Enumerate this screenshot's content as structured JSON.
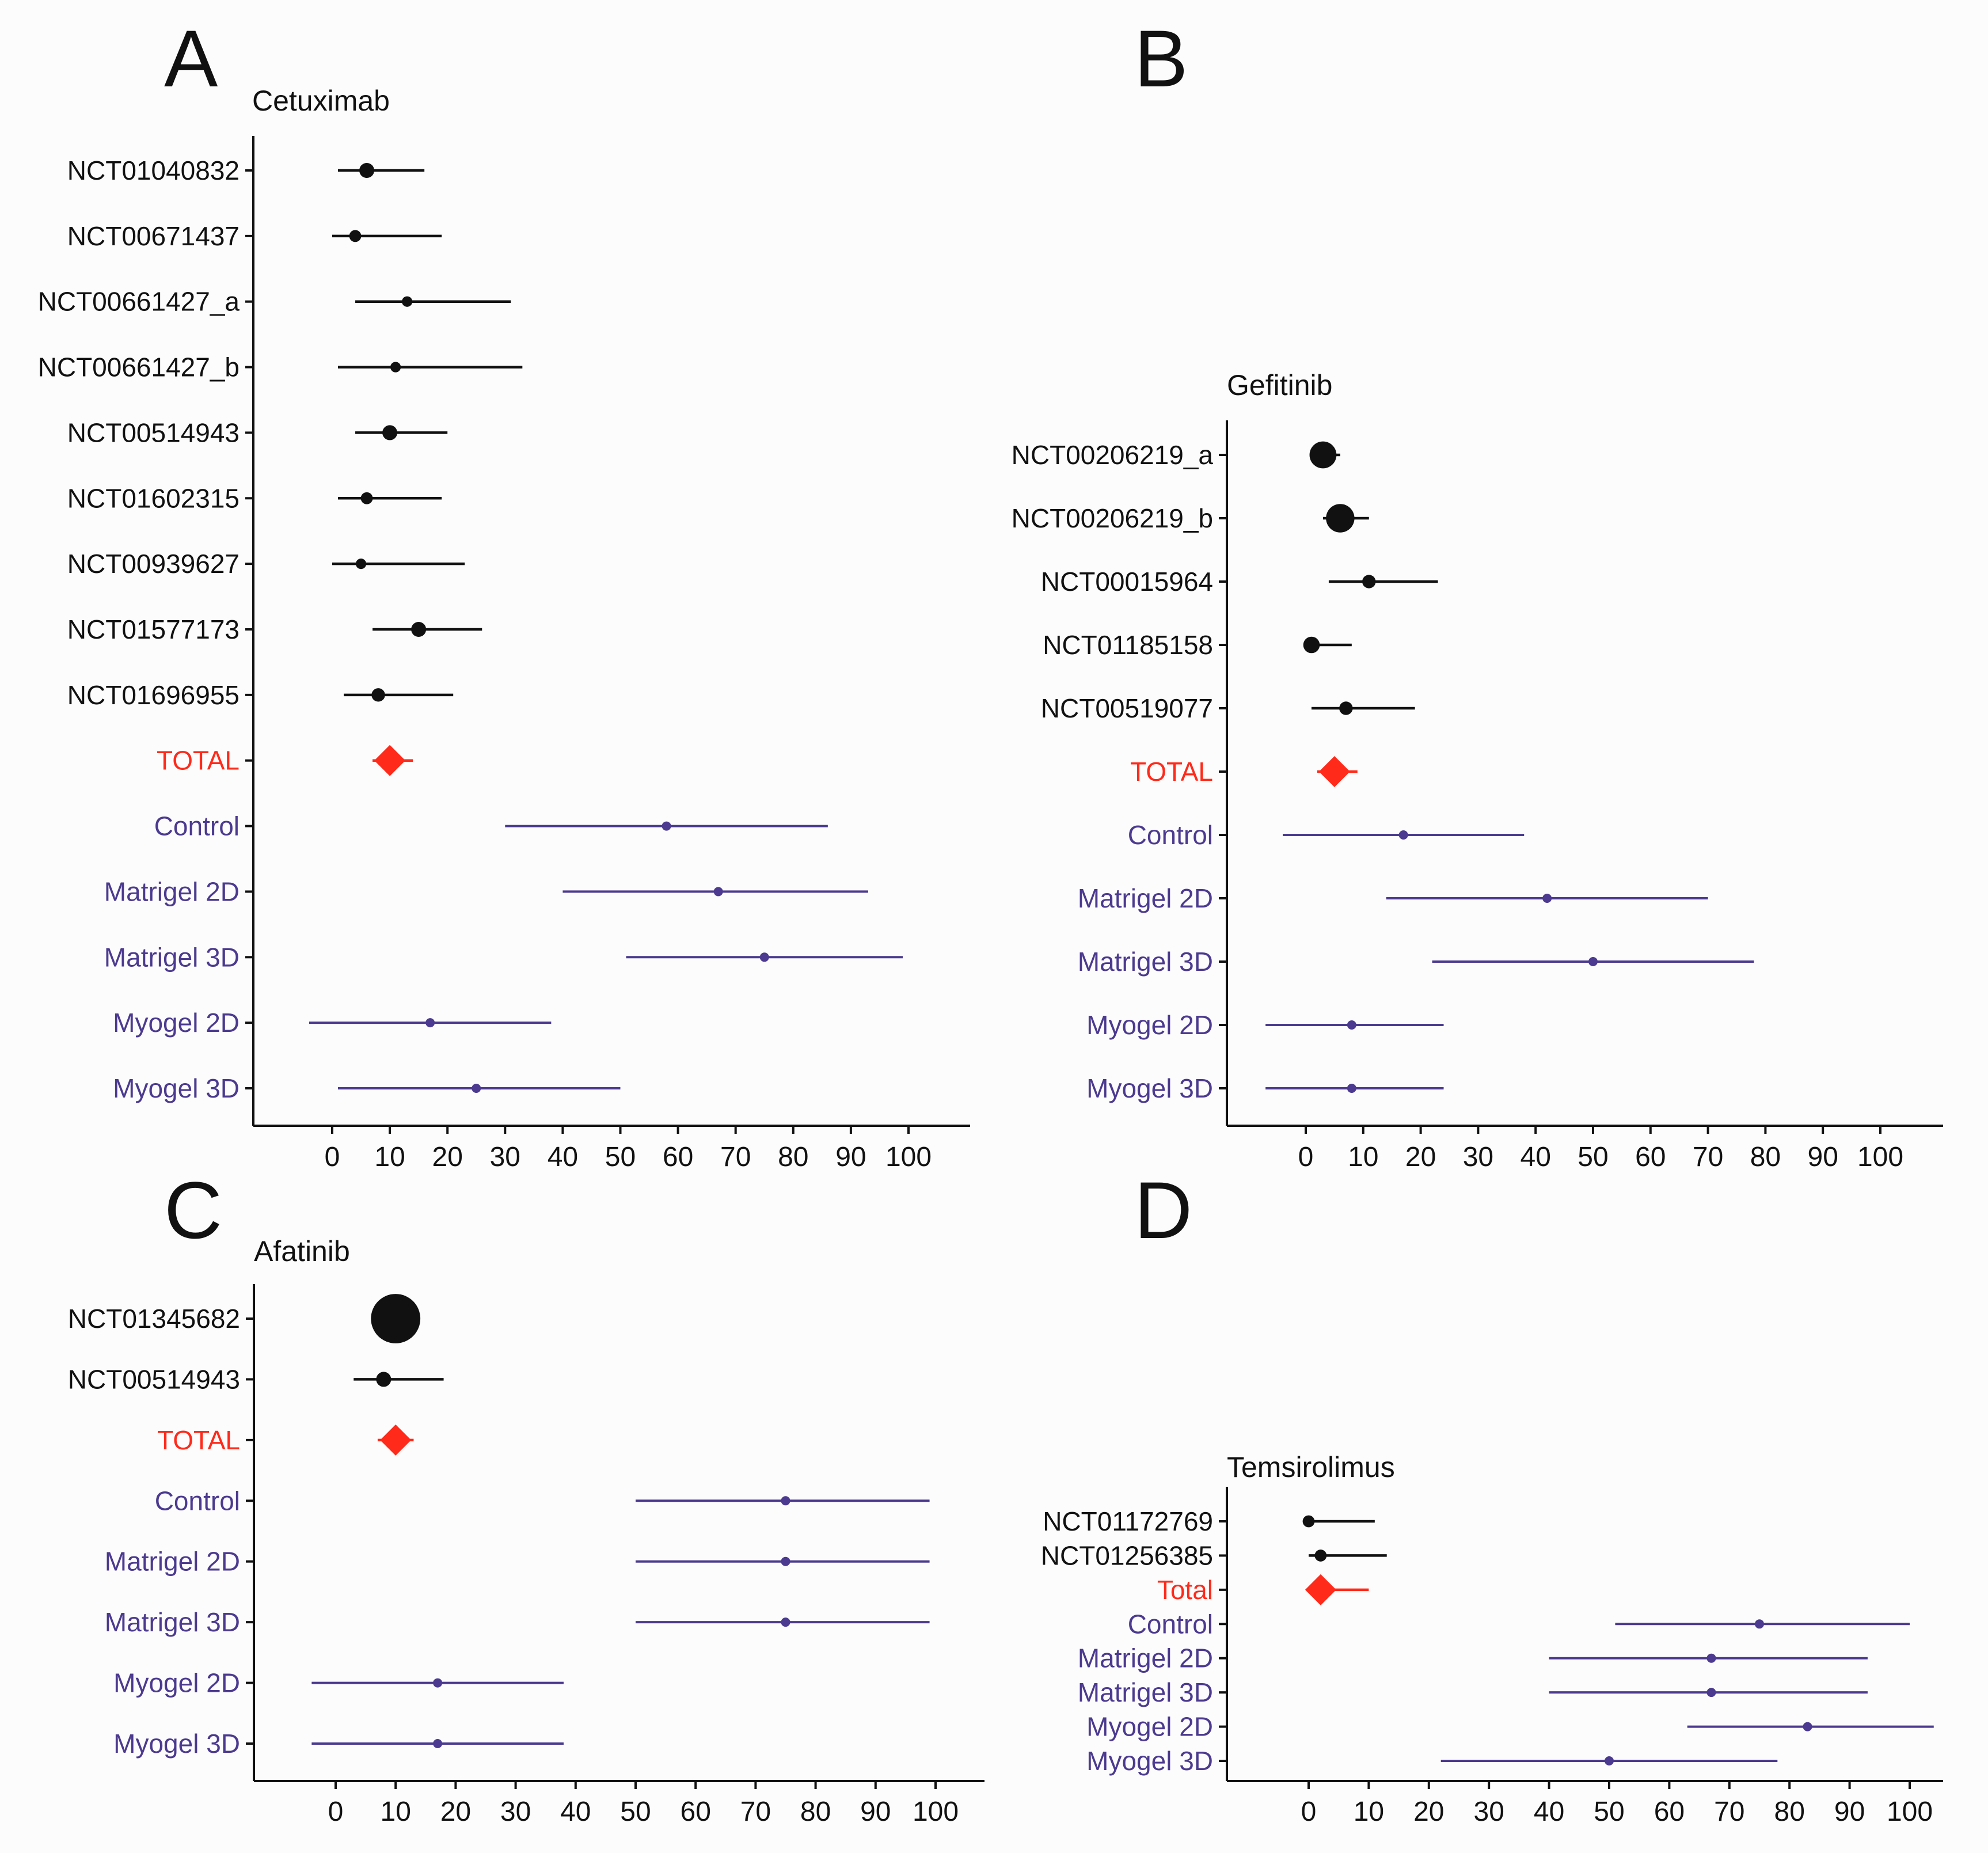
{
  "colors": {
    "trial": "#111111",
    "total": "#ff2a1a",
    "model": "#4b3a8f",
    "axis": "#111111"
  },
  "chart_data": [
    {
      "type": "forest",
      "panel": "A",
      "title": "Cetuximab",
      "xticks": [
        0,
        10,
        20,
        30,
        40,
        50,
        60,
        70,
        80,
        90,
        100
      ],
      "xlim": [
        -14,
        110
      ],
      "rows": [
        {
          "label": "NCT01040832",
          "kind": "trial",
          "est": 6,
          "lo": 1,
          "hi": 16,
          "size": 1.0
        },
        {
          "label": "NCT00671437",
          "kind": "trial",
          "est": 4,
          "lo": 0,
          "hi": 19,
          "size": 0.8
        },
        {
          "label": "NCT00661427_a",
          "kind": "trial",
          "est": 13,
          "lo": 4,
          "hi": 31,
          "size": 0.7
        },
        {
          "label": "NCT00661427_b",
          "kind": "trial",
          "est": 11,
          "lo": 1,
          "hi": 33,
          "size": 0.7
        },
        {
          "label": "NCT00514943",
          "kind": "trial",
          "est": 10,
          "lo": 4,
          "hi": 20,
          "size": 1.0
        },
        {
          "label": "NCT01602315",
          "kind": "trial",
          "est": 6,
          "lo": 1,
          "hi": 19,
          "size": 0.8
        },
        {
          "label": "NCT00939627",
          "kind": "trial",
          "est": 5,
          "lo": 0,
          "hi": 23,
          "size": 0.7
        },
        {
          "label": "NCT01577173",
          "kind": "trial",
          "est": 15,
          "lo": 7,
          "hi": 26,
          "size": 1.0
        },
        {
          "label": "NCT01696955",
          "kind": "trial",
          "est": 8,
          "lo": 2,
          "hi": 21,
          "size": 0.9
        },
        {
          "label": "TOTAL",
          "kind": "total",
          "est": 10,
          "lo": 7,
          "hi": 14
        },
        {
          "label": "Control",
          "kind": "model",
          "est": 58,
          "lo": 30,
          "hi": 86
        },
        {
          "label": "Matrigel 2D",
          "kind": "model",
          "est": 67,
          "lo": 40,
          "hi": 93
        },
        {
          "label": "Matrigel 3D",
          "kind": "model",
          "est": 75,
          "lo": 51,
          "hi": 99
        },
        {
          "label": "Myogel 2D",
          "kind": "model",
          "est": 17,
          "lo": -4,
          "hi": 38
        },
        {
          "label": "Myogel 3D",
          "kind": "model",
          "est": 25,
          "lo": 1,
          "hi": 50
        }
      ]
    },
    {
      "type": "forest",
      "panel": "B",
      "title": "Gefitinib",
      "xticks": [
        0,
        10,
        20,
        30,
        40,
        50,
        60,
        70,
        80,
        90,
        100
      ],
      "xlim": [
        -14,
        110
      ],
      "rows": [
        {
          "label": "NCT00206219_a",
          "kind": "trial",
          "est": 3,
          "lo": 1,
          "hi": 6,
          "size": 1.8
        },
        {
          "label": "NCT00206219_b",
          "kind": "trial",
          "est": 6,
          "lo": 3,
          "hi": 11,
          "size": 1.9
        },
        {
          "label": "NCT00015964",
          "kind": "trial",
          "est": 11,
          "lo": 4,
          "hi": 23,
          "size": 0.9
        },
        {
          "label": "NCT01185158",
          "kind": "trial",
          "est": 1,
          "lo": 0,
          "hi": 8,
          "size": 1.1
        },
        {
          "label": "NCT00519077",
          "kind": "trial",
          "est": 7,
          "lo": 1,
          "hi": 19,
          "size": 0.9
        },
        {
          "label": "TOTAL",
          "kind": "total",
          "est": 5,
          "lo": 2,
          "hi": 9
        },
        {
          "label": "Control",
          "kind": "model",
          "est": 17,
          "lo": -4,
          "hi": 38
        },
        {
          "label": "Matrigel 2D",
          "kind": "model",
          "est": 42,
          "lo": 14,
          "hi": 70
        },
        {
          "label": "Matrigel 3D",
          "kind": "model",
          "est": 50,
          "lo": 22,
          "hi": 78
        },
        {
          "label": "Myogel 2D",
          "kind": "model",
          "est": 8,
          "lo": -7,
          "hi": 24
        },
        {
          "label": "Myogel 3D",
          "kind": "model",
          "est": 8,
          "lo": -7,
          "hi": 24
        }
      ]
    },
    {
      "type": "forest",
      "panel": "C",
      "title": "Afatinib",
      "xticks": [
        0,
        10,
        20,
        30,
        40,
        50,
        60,
        70,
        80,
        90,
        100
      ],
      "xlim": [
        -13,
        108
      ],
      "rows": [
        {
          "label": "NCT01345682",
          "kind": "trial",
          "est": 10,
          "lo": 8,
          "hi": 14,
          "size": 3.3
        },
        {
          "label": "NCT00514943",
          "kind": "trial",
          "est": 8,
          "lo": 3,
          "hi": 18,
          "size": 1.0
        },
        {
          "label": "TOTAL",
          "kind": "total",
          "est": 10,
          "lo": 7,
          "hi": 13
        },
        {
          "label": "Control",
          "kind": "model",
          "est": 75,
          "lo": 50,
          "hi": 99
        },
        {
          "label": "Matrigel 2D",
          "kind": "model",
          "est": 75,
          "lo": 50,
          "hi": 99
        },
        {
          "label": "Matrigel 3D",
          "kind": "model",
          "est": 75,
          "lo": 50,
          "hi": 99
        },
        {
          "label": "Myogel 2D",
          "kind": "model",
          "est": 17,
          "lo": -4,
          "hi": 38
        },
        {
          "label": "Myogel 3D",
          "kind": "model",
          "est": 17,
          "lo": -4,
          "hi": 38
        }
      ]
    },
    {
      "type": "forest",
      "panel": "D",
      "title": "Temsirolimus",
      "xticks": [
        0,
        10,
        20,
        30,
        40,
        50,
        60,
        70,
        80,
        90,
        100
      ],
      "xlim": [
        -13,
        110
      ],
      "rows": [
        {
          "label": "NCT01172769",
          "kind": "trial",
          "est": 0,
          "lo": 0,
          "hi": 11,
          "size": 0.8
        },
        {
          "label": "NCT01256385",
          "kind": "trial",
          "est": 2,
          "lo": 0,
          "hi": 13,
          "size": 0.8
        },
        {
          "label": "Total",
          "kind": "total",
          "est": 2,
          "lo": 0,
          "hi": 10
        },
        {
          "label": "Control",
          "kind": "model",
          "est": 75,
          "lo": 51,
          "hi": 100
        },
        {
          "label": "Matrigel 2D",
          "kind": "model",
          "est": 67,
          "lo": 40,
          "hi": 93
        },
        {
          "label": "Matrigel 3D",
          "kind": "model",
          "est": 67,
          "lo": 40,
          "hi": 93
        },
        {
          "label": "Myogel 2D",
          "kind": "model",
          "est": 83,
          "lo": 63,
          "hi": 104
        },
        {
          "label": "Myogel 3D",
          "kind": "model",
          "est": 50,
          "lo": 22,
          "hi": 78
        }
      ]
    }
  ]
}
